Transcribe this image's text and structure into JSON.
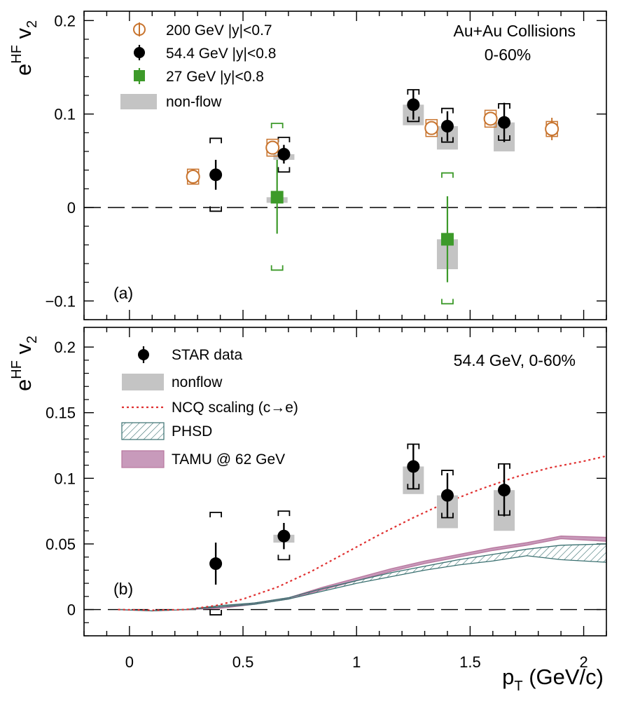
{
  "chart_data": [
    {
      "panel": "(a)",
      "type": "scatter",
      "ylabel": {
        "main": "e",
        "sup": "HF",
        "mid": " v",
        "sub": "2"
      },
      "ylim": [
        -0.12,
        0.21
      ],
      "yticks": [
        -0.1,
        0,
        0.1,
        0.2
      ],
      "ytick_labels": [
        "−0.1",
        "0",
        "0.1",
        "0.2"
      ],
      "annotation": [
        "Au+Au Collisions",
        "0-60%"
      ],
      "legend": [
        "200 GeV |y|<0.7",
        "54.4 GeV |y|<0.8",
        "27 GeV |y|<0.8",
        "non-flow"
      ],
      "series": [
        {
          "name": "200 GeV |y|<0.7",
          "color": "#c8742e",
          "marker": "open-circle",
          "points": [
            {
              "x": 0.28,
              "y": 0.033,
              "stat": 0.005,
              "sys": 0.008
            },
            {
              "x": 0.63,
              "y": 0.064,
              "stat": 0.006,
              "sys": 0.009
            },
            {
              "x": 1.33,
              "y": 0.085,
              "stat": 0.006,
              "sys": 0.009
            },
            {
              "x": 1.59,
              "y": 0.095,
              "stat": 0.007,
              "sys": 0.009
            },
            {
              "x": 1.86,
              "y": 0.084,
              "stat": 0.012,
              "sys": 0.008
            }
          ]
        },
        {
          "name": "54.4 GeV |y|<0.8",
          "color": "#000000",
          "marker": "filled-circle",
          "points": [
            {
              "x": 0.38,
              "y": 0.035,
              "stat": 0.016,
              "sys_lo": -0.004,
              "sys_hi": 0.074,
              "nonflow_lo": null,
              "nonflow_hi": null
            },
            {
              "x": 0.68,
              "y": 0.057,
              "stat": 0.01,
              "sys_lo": 0.038,
              "sys_hi": 0.075,
              "nonflow_lo": 0.051,
              "nonflow_hi": 0.057
            },
            {
              "x": 1.25,
              "y": 0.11,
              "stat": 0.016,
              "sys_lo": 0.092,
              "sys_hi": 0.126,
              "nonflow_lo": 0.088,
              "nonflow_hi": 0.11
            },
            {
              "x": 1.4,
              "y": 0.087,
              "stat": 0.016,
              "sys_lo": 0.07,
              "sys_hi": 0.106,
              "nonflow_lo": 0.062,
              "nonflow_hi": 0.087
            },
            {
              "x": 1.65,
              "y": 0.091,
              "stat": 0.021,
              "sys_lo": 0.072,
              "sys_hi": 0.111,
              "nonflow_lo": 0.06,
              "nonflow_hi": 0.091
            }
          ]
        },
        {
          "name": "27 GeV |y|<0.8",
          "color": "#3d9a2a",
          "marker": "filled-square",
          "points": [
            {
              "x": 0.65,
              "y": 0.011,
              "stat_lo": -0.028,
              "stat_hi": 0.051,
              "sys_lo": -0.067,
              "sys_hi": 0.09,
              "nonflow_lo": 0.006,
              "nonflow_hi": 0.011
            },
            {
              "x": 1.4,
              "y": -0.034,
              "stat_lo": -0.08,
              "stat_hi": 0.012,
              "sys_lo": -0.103,
              "sys_hi": 0.037,
              "nonflow_lo": -0.066,
              "nonflow_hi": -0.034
            }
          ]
        }
      ]
    },
    {
      "panel": "(b)",
      "type": "scatter",
      "ylabel": {
        "main": "e",
        "sup": "HF",
        "mid": " v",
        "sub": "2"
      },
      "xlabel": {
        "main": "p",
        "sub": "T",
        "rest": " (GeV/c)"
      },
      "xlim": [
        -0.2,
        2.1
      ],
      "xticks": [
        0,
        0.5,
        1,
        1.5,
        2
      ],
      "xtick_labels": [
        "0",
        "0.5",
        "1",
        "1.5",
        "2"
      ],
      "ylim": [
        -0.02,
        0.215
      ],
      "yticks": [
        0,
        0.05,
        0.1,
        0.15,
        0.2
      ],
      "ytick_labels": [
        "0",
        "0.05",
        "0.1",
        "0.15",
        "0.2"
      ],
      "annotation": "54.4 GeV, 0-60%",
      "legend": [
        "STAR data",
        "nonflow",
        "NCQ scaling (c→e)",
        "PHSD",
        "TAMU @ 62 GeV"
      ],
      "star_data": [
        {
          "x": 0.38,
          "y": 0.035,
          "stat": 0.016,
          "sys_lo": -0.004,
          "sys_hi": 0.074,
          "nonflow_lo": null,
          "nonflow_hi": null
        },
        {
          "x": 0.68,
          "y": 0.056,
          "stat": 0.01,
          "sys_lo": 0.038,
          "sys_hi": 0.075,
          "nonflow_lo": 0.051,
          "nonflow_hi": 0.057
        },
        {
          "x": 1.25,
          "y": 0.109,
          "stat": 0.017,
          "sys_lo": 0.092,
          "sys_hi": 0.126,
          "nonflow_lo": 0.088,
          "nonflow_hi": 0.109
        },
        {
          "x": 1.4,
          "y": 0.087,
          "stat": 0.017,
          "sys_lo": 0.07,
          "sys_hi": 0.106,
          "nonflow_lo": 0.062,
          "nonflow_hi": 0.087
        },
        {
          "x": 1.65,
          "y": 0.091,
          "stat": 0.02,
          "sys_lo": 0.072,
          "sys_hi": 0.111,
          "nonflow_lo": 0.06,
          "nonflow_hi": 0.091
        }
      ],
      "ncq": {
        "name": "NCQ scaling (c→e)",
        "color": "#e03030",
        "x": [
          -0.05,
          0.1,
          0.25,
          0.38,
          0.5,
          0.65,
          0.8,
          0.95,
          1.1,
          1.25,
          1.4,
          1.55,
          1.7,
          1.85,
          2.0,
          2.1
        ],
        "y": [
          0.0,
          -0.0005,
          0.0,
          0.003,
          0.008,
          0.017,
          0.029,
          0.043,
          0.057,
          0.07,
          0.082,
          0.092,
          0.101,
          0.108,
          0.113,
          0.117
        ]
      },
      "phsd": {
        "name": "PHSD",
        "color": "#3a7070",
        "x": [
          -0.05,
          0.1,
          0.25,
          0.4,
          0.55,
          0.7,
          0.85,
          1.0,
          1.15,
          1.3,
          1.45,
          1.6,
          1.75,
          1.9,
          2.1
        ],
        "lo": [
          0.0,
          -0.001,
          0.0,
          0.002,
          0.004,
          0.008,
          0.014,
          0.02,
          0.025,
          0.03,
          0.034,
          0.037,
          0.041,
          0.038,
          0.036
        ],
        "hi": [
          0.0,
          -0.001,
          0.0,
          0.003,
          0.005,
          0.009,
          0.016,
          0.022,
          0.028,
          0.033,
          0.038,
          0.042,
          0.046,
          0.049,
          0.05
        ]
      },
      "tamu": {
        "name": "TAMU @ 62 GeV",
        "color": "#b8779e",
        "x": [
          -0.05,
          0.1,
          0.25,
          0.4,
          0.55,
          0.7,
          0.85,
          1.0,
          1.15,
          1.3,
          1.45,
          1.6,
          1.75,
          1.9,
          2.1
        ],
        "lo": [
          0.0,
          -0.001,
          0.0,
          0.001,
          0.004,
          0.008,
          0.015,
          0.022,
          0.029,
          0.035,
          0.04,
          0.045,
          0.049,
          0.054,
          0.052
        ],
        "hi": [
          0.0,
          -0.001,
          0.0,
          0.002,
          0.005,
          0.009,
          0.017,
          0.024,
          0.031,
          0.037,
          0.042,
          0.047,
          0.051,
          0.056,
          0.055
        ]
      }
    }
  ]
}
